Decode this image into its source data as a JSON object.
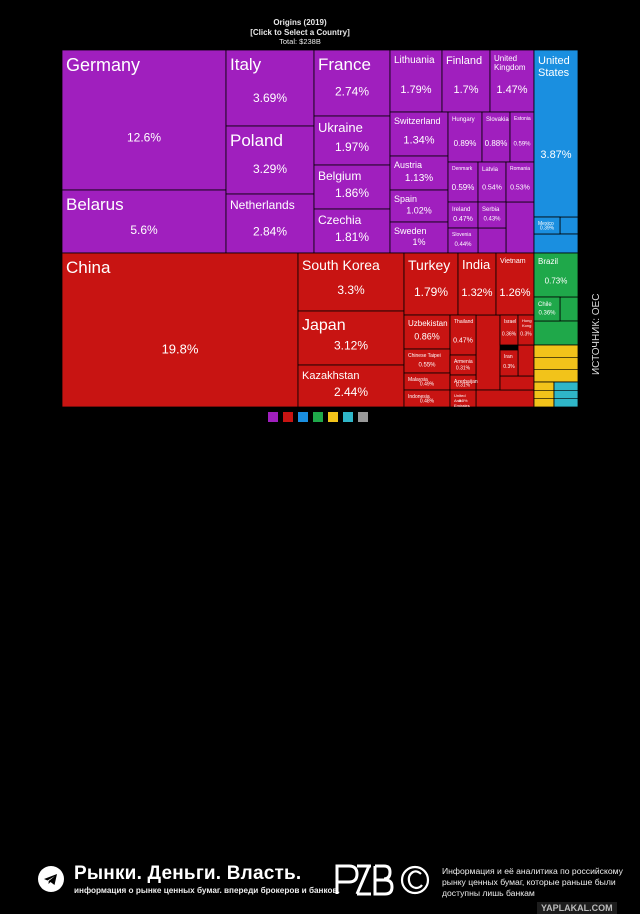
{
  "header": {
    "title": "Origins (2019)",
    "hint": "[Click to Select a Country]",
    "total": "Total: $238B"
  },
  "chart_data": {
    "type": "treemap",
    "title": "Origins (2019)",
    "subtitle": "[Click to Select a Country]",
    "total_label": "Total: $238B",
    "unit": "% of total",
    "values": [
      {
        "name": "Germany",
        "value": 12.6,
        "group": "Europe"
      },
      {
        "name": "Belarus",
        "value": 5.6,
        "group": "Europe"
      },
      {
        "name": "Italy",
        "value": 3.69,
        "group": "Europe"
      },
      {
        "name": "Poland",
        "value": 3.29,
        "group": "Europe"
      },
      {
        "name": "Netherlands",
        "value": 2.84,
        "group": "Europe"
      },
      {
        "name": "France",
        "value": 2.74,
        "group": "Europe"
      },
      {
        "name": "Ukraine",
        "value": 1.97,
        "group": "Europe"
      },
      {
        "name": "Belgium",
        "value": 1.86,
        "group": "Europe"
      },
      {
        "name": "Czechia",
        "value": 1.81,
        "group": "Europe"
      },
      {
        "name": "Lithuania",
        "value": 1.79,
        "group": "Europe"
      },
      {
        "name": "Finland",
        "value": 1.7,
        "group": "Europe"
      },
      {
        "name": "United Kingdom",
        "value": 1.47,
        "group": "Europe"
      },
      {
        "name": "Switzerland",
        "value": 1.34,
        "group": "Europe"
      },
      {
        "name": "Austria",
        "value": 1.13,
        "group": "Europe"
      },
      {
        "name": "Spain",
        "value": 1.02,
        "group": "Europe"
      },
      {
        "name": "Sweden",
        "value": 1,
        "group": "Europe"
      },
      {
        "name": "Hungary",
        "value": 0.89,
        "group": "Europe"
      },
      {
        "name": "Slovakia",
        "value": 0.88,
        "group": "Europe"
      },
      {
        "name": "Estonia",
        "value": 0.59,
        "group": "Europe"
      },
      {
        "name": "Denmark",
        "value": 0.59,
        "group": "Europe"
      },
      {
        "name": "Latvia",
        "value": 0.54,
        "group": "Europe"
      },
      {
        "name": "Romania",
        "value": 0.53,
        "group": "Europe"
      },
      {
        "name": "Ireland",
        "value": 0.47,
        "group": "Europe"
      },
      {
        "name": "Serbia",
        "value": 0.43,
        "group": "Europe"
      },
      {
        "name": "Slovenia",
        "value": 0.44,
        "group": "Europe"
      },
      {
        "name": "China",
        "value": 19.8,
        "group": "Asia"
      },
      {
        "name": "South Korea",
        "value": 3.3,
        "group": "Asia"
      },
      {
        "name": "Japan",
        "value": 3.12,
        "group": "Asia"
      },
      {
        "name": "Kazakhstan",
        "value": 2.44,
        "group": "Asia"
      },
      {
        "name": "Turkey",
        "value": 1.79,
        "group": "Asia"
      },
      {
        "name": "India",
        "value": 1.32,
        "group": "Asia"
      },
      {
        "name": "Vietnam",
        "value": 1.26,
        "group": "Asia"
      },
      {
        "name": "Uzbekistan",
        "value": 0.86,
        "group": "Asia"
      },
      {
        "name": "Thailand",
        "value": 0.47,
        "group": "Asia"
      },
      {
        "name": "Chinese Taipei",
        "value": 0.55,
        "group": "Asia"
      },
      {
        "name": "Armenia",
        "value": 0.31,
        "group": "Asia"
      },
      {
        "name": "Malaysia",
        "value": 0.49,
        "group": "Asia"
      },
      {
        "name": "Azerbaijan",
        "value": 0.31,
        "group": "Asia"
      },
      {
        "name": "Indonesia",
        "value": 0.48,
        "group": "Asia"
      },
      {
        "name": "United Arab Emirates",
        "value": 0.3,
        "group": "Asia"
      },
      {
        "name": "Israel",
        "value": 0.36,
        "group": "Asia"
      },
      {
        "name": "Iran",
        "value": 0.3,
        "group": "Asia"
      },
      {
        "name": "Hong Kong",
        "value": 0.3,
        "group": "Asia"
      },
      {
        "name": "United States",
        "value": 3.87,
        "group": "North America"
      },
      {
        "name": "Mexico",
        "value": 0.39,
        "group": "North America"
      },
      {
        "name": "Brazil",
        "value": 0.73,
        "group": "South America"
      },
      {
        "name": "Chile",
        "value": 0.36,
        "group": "South America"
      }
    ]
  },
  "palette": {
    "Europe": "#a01fbe",
    "Asia": "#c81412",
    "North America": "#1a8fe0",
    "South America": "#1fa84a",
    "Africa": "#f2c31a",
    "Oceania": "#2fb6c8",
    "Other": "#999999"
  },
  "legend_colors": [
    "#a01fbe",
    "#c81412",
    "#1a8fe0",
    "#1fa84a",
    "#f2c31a",
    "#2fb6c8",
    "#999999"
  ],
  "side_credit": "ИСТОЧНИК: OEC",
  "footer": {
    "brand": "Рынки. Деньги. Власть.",
    "tagline": "информация о рынке ценных бумаг. впереди брокеров и банков.",
    "logo_text": "РДВ",
    "description": "Информация и её аналитика по российскому рынку ценных бумаг, которые раньше были доступны лишь банкам",
    "watermark": "YAPLAKAL.COM"
  },
  "icons": {
    "telegram": "telegram-icon",
    "copyright": "copyright-icon"
  }
}
